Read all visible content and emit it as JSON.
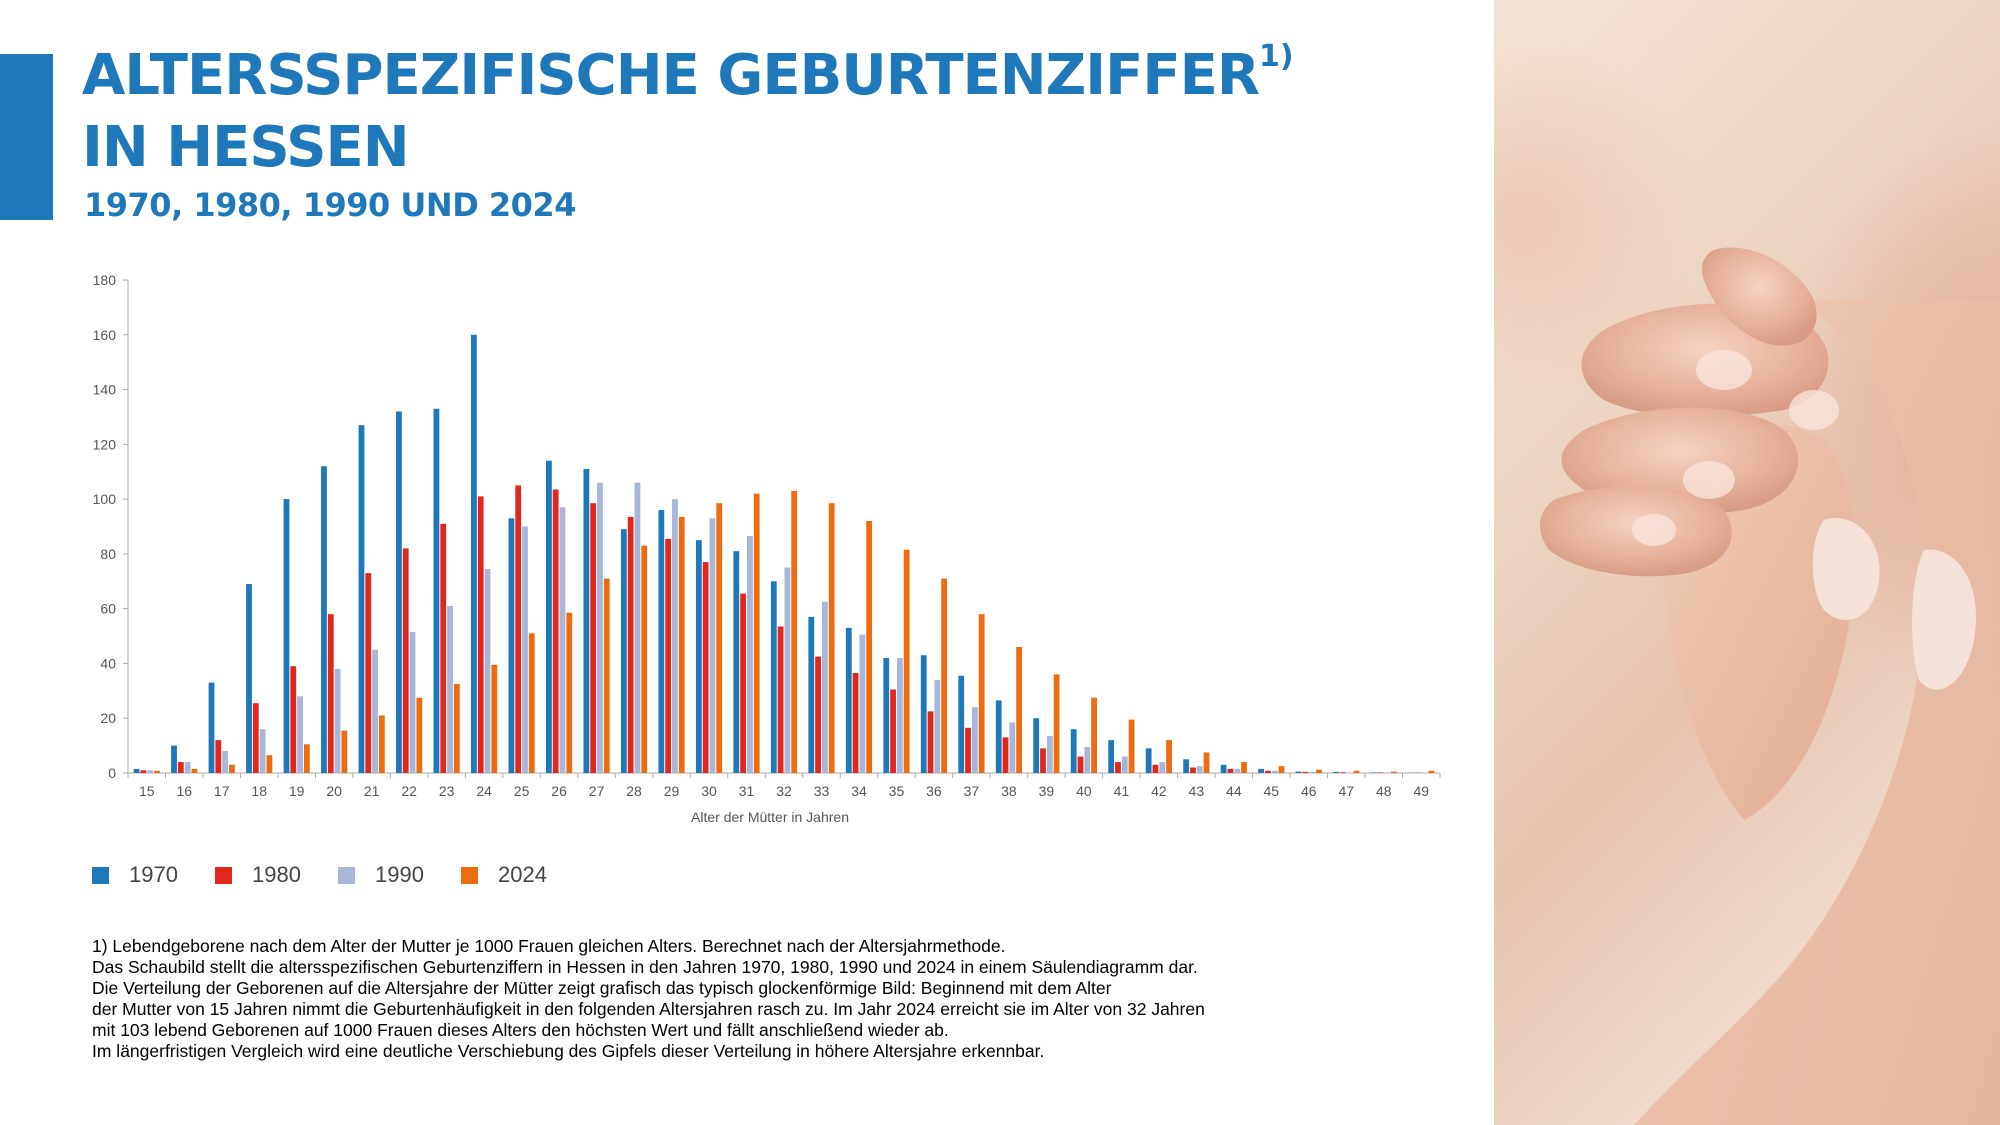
{
  "header": {
    "title_line1": "ALTERSSPEZIFISCHE GEBURTENZIFFER",
    "title_sup": "1)",
    "title_line2": "IN HESSEN",
    "subtitle": "1970, 1980, 1990 UND 2024"
  },
  "chart_data": {
    "type": "bar",
    "xlabel": "Alter der Mütter in Jahren",
    "ylabel": "",
    "ylim": [
      0,
      180
    ],
    "yticks": [
      0,
      20,
      40,
      60,
      80,
      100,
      120,
      140,
      160,
      180
    ],
    "grid": false,
    "legend_position": "bottom-left",
    "categories": [
      "15",
      "16",
      "17",
      "18",
      "19",
      "20",
      "21",
      "22",
      "23",
      "24",
      "25",
      "26",
      "27",
      "28",
      "29",
      "30",
      "31",
      "32",
      "33",
      "34",
      "35",
      "36",
      "37",
      "38",
      "39",
      "40",
      "41",
      "42",
      "43",
      "44",
      "45",
      "46",
      "47",
      "48",
      "49"
    ],
    "series": [
      {
        "name": "1970",
        "color": "#1f78b9",
        "values": [
          1.5,
          10,
          33,
          69,
          100,
          112,
          127,
          132,
          133,
          160,
          93,
          114,
          111,
          89,
          96,
          85,
          81,
          70,
          57,
          53,
          42,
          43,
          35.5,
          26.5,
          20,
          16,
          12,
          9,
          5,
          3,
          1.5,
          0.5,
          0.4,
          0.2,
          0.1
        ]
      },
      {
        "name": "1980",
        "color": "#e2281c",
        "values": [
          1,
          4,
          12,
          25.5,
          39,
          58,
          73,
          82,
          91,
          101,
          105,
          103.5,
          98.5,
          93.5,
          85.5,
          77,
          65.5,
          53.5,
          42.5,
          36.5,
          30.5,
          22.5,
          16.5,
          13,
          9,
          6,
          4,
          3,
          2,
          1.5,
          0.8,
          0.4,
          0.3,
          0.2,
          0.1
        ]
      },
      {
        "name": "1990",
        "color": "#a7b6d9",
        "values": [
          1,
          4,
          8,
          16,
          28,
          38,
          45,
          51.5,
          61,
          74.5,
          90,
          97,
          106,
          106,
          100,
          93,
          86.5,
          75,
          62.5,
          50.5,
          42,
          34,
          24,
          18.5,
          13.5,
          9.5,
          6,
          4,
          2.5,
          1.5,
          0.8,
          0.4,
          0.2,
          0.1,
          0.1
        ]
      },
      {
        "name": "2024",
        "color": "#ee6c10",
        "values": [
          0.8,
          1.5,
          3,
          6.5,
          10.5,
          15.5,
          21,
          27.5,
          32.5,
          39.5,
          51,
          58.5,
          71,
          83,
          93.5,
          98.5,
          102,
          103,
          98.5,
          92,
          81.5,
          71,
          58,
          46,
          36,
          27.5,
          19.5,
          12,
          7.5,
          4,
          2.5,
          1.2,
          0.8,
          0.5,
          0.8
        ]
      }
    ]
  },
  "footnote": {
    "lines": [
      "1) Lebendgeborene nach dem Alter der Mutter je 1000 Frauen gleichen Alters. Berechnet nach der Altersjahrmethode.",
      "Das Schaubild stellt die altersspezifischen Geburtenziffern in Hessen in den Jahren 1970, 1980, 1990 und 2024 in einem Säulendiagramm dar.",
      "Die Verteilung der Geborenen auf die Altersjahre der Mütter zeigt grafisch das typisch glockenförmige Bild: Beginnend mit dem Alter",
      "der Mutter von 15 Jahren nimmt die Geburtenhäufigkeit in den folgenden Altersjahren rasch zu. Im Jahr 2024 erreicht sie im Alter von 32 Jahren",
      "mit 103 lebend Geborenen auf 1000 Frauen dieses Alters den höchsten Wert und fällt anschließend wieder ab.",
      "Im längerfristigen Vergleich wird eine deutliche Verschiebung des Gipfels dieser Verteilung in höhere Altersjahre erkennbar."
    ]
  },
  "photo": {
    "icon": "baby-hand-photo"
  }
}
